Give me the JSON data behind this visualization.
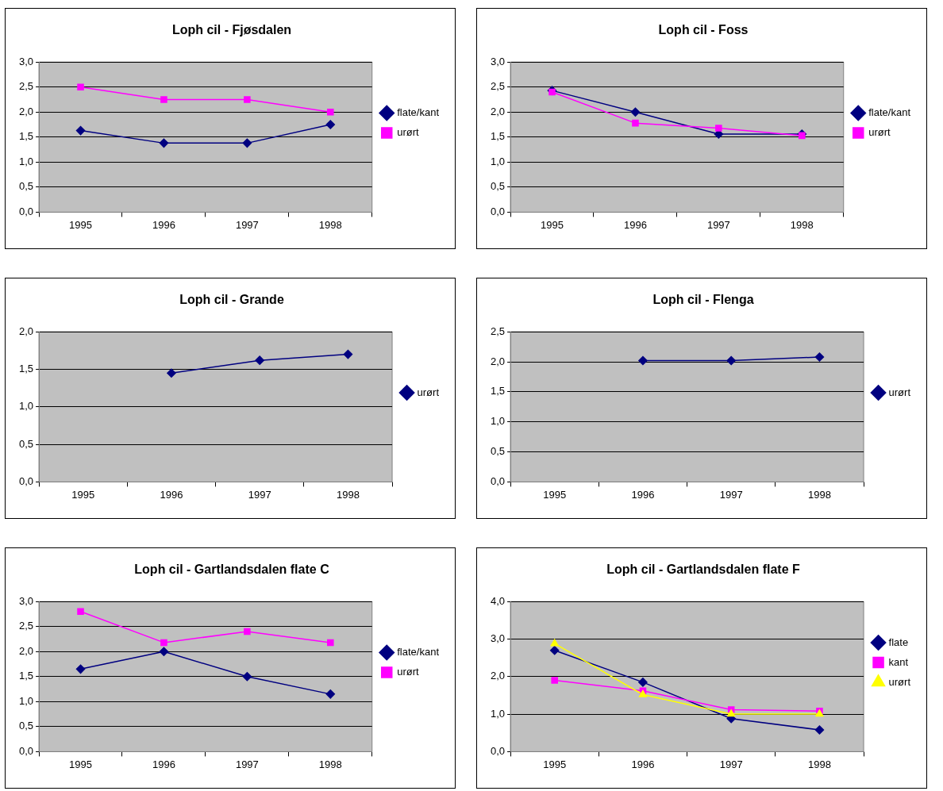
{
  "chart_data": [
    {
      "type": "line",
      "title": "Loph cil - Fjøsdalen",
      "categories": [
        "1995",
        "1996",
        "1997",
        "1998"
      ],
      "ylim": [
        0,
        3
      ],
      "yticks": [
        {
          "value": 0,
          "label": "0,0"
        },
        {
          "value": 0.5,
          "label": "0,5"
        },
        {
          "value": 1,
          "label": "1,0"
        },
        {
          "value": 1.5,
          "label": "1,5"
        },
        {
          "value": 2,
          "label": "2,0"
        },
        {
          "value": 2.5,
          "label": "2,5"
        },
        {
          "value": 3,
          "label": "3,0"
        }
      ],
      "grid": "y",
      "legend": "right",
      "series": [
        {
          "name": "flate/kant",
          "color": "#000080",
          "marker": "diamond",
          "values": [
            1.63,
            1.38,
            1.38,
            1.75
          ]
        },
        {
          "name": "urørt",
          "color": "#ff00ff",
          "marker": "square",
          "values": [
            2.5,
            2.25,
            2.25,
            2.0
          ]
        }
      ]
    },
    {
      "type": "line",
      "title": "Loph cil - Foss",
      "categories": [
        "1995",
        "1996",
        "1997",
        "1998"
      ],
      "ylim": [
        0,
        3
      ],
      "yticks": [
        {
          "value": 0,
          "label": "0,0"
        },
        {
          "value": 0.5,
          "label": "0,5"
        },
        {
          "value": 1,
          "label": "1,0"
        },
        {
          "value": 1.5,
          "label": "1,5"
        },
        {
          "value": 2,
          "label": "2,0"
        },
        {
          "value": 2.5,
          "label": "2,5"
        },
        {
          "value": 3,
          "label": "3,0"
        }
      ],
      "grid": "y",
      "legend": "right",
      "series": [
        {
          "name": "flate/kant",
          "color": "#000080",
          "marker": "diamond",
          "values": [
            2.43,
            2.0,
            1.56,
            1.56
          ]
        },
        {
          "name": "urørt",
          "color": "#ff00ff",
          "marker": "square",
          "values": [
            2.4,
            1.78,
            1.68,
            1.53
          ]
        }
      ]
    },
    {
      "type": "line",
      "title": "Loph cil - Grande",
      "categories": [
        "1995",
        "1996",
        "1997",
        "1998"
      ],
      "ylim": [
        0,
        2
      ],
      "yticks": [
        {
          "value": 0,
          "label": "0,0"
        },
        {
          "value": 0.5,
          "label": "0,5"
        },
        {
          "value": 1,
          "label": "1,0"
        },
        {
          "value": 1.5,
          "label": "1,5"
        },
        {
          "value": 2,
          "label": "2,0"
        }
      ],
      "grid": "y",
      "legend": "right",
      "series": [
        {
          "name": "urørt",
          "color": "#000080",
          "marker": "diamond",
          "values": [
            null,
            1.45,
            1.62,
            1.7
          ]
        }
      ]
    },
    {
      "type": "line",
      "title": "Loph cil - Flenga",
      "categories": [
        "1995",
        "1996",
        "1997",
        "1998"
      ],
      "ylim": [
        0,
        2.5
      ],
      "yticks": [
        {
          "value": 0,
          "label": "0,0"
        },
        {
          "value": 0.5,
          "label": "0,5"
        },
        {
          "value": 1,
          "label": "1,0"
        },
        {
          "value": 1.5,
          "label": "1,5"
        },
        {
          "value": 2,
          "label": "2,0"
        },
        {
          "value": 2.5,
          "label": "2,5"
        }
      ],
      "grid": "y",
      "legend": "right",
      "series": [
        {
          "name": "urørt",
          "color": "#000080",
          "marker": "diamond",
          "values": [
            null,
            2.02,
            2.02,
            2.08
          ]
        }
      ]
    },
    {
      "type": "line",
      "title": "Loph cil - Gartlandsdalen flate C",
      "categories": [
        "1995",
        "1996",
        "1997",
        "1998"
      ],
      "ylim": [
        0,
        3
      ],
      "yticks": [
        {
          "value": 0,
          "label": "0,0"
        },
        {
          "value": 0.5,
          "label": "0,5"
        },
        {
          "value": 1,
          "label": "1,0"
        },
        {
          "value": 1.5,
          "label": "1,5"
        },
        {
          "value": 2,
          "label": "2,0"
        },
        {
          "value": 2.5,
          "label": "2,5"
        },
        {
          "value": 3,
          "label": "3,0"
        }
      ],
      "grid": "y",
      "legend": "right",
      "series": [
        {
          "name": "flate/kant",
          "color": "#000080",
          "marker": "diamond",
          "values": [
            1.65,
            2.0,
            1.5,
            1.15
          ]
        },
        {
          "name": "urørt",
          "color": "#ff00ff",
          "marker": "square",
          "values": [
            2.8,
            2.18,
            2.4,
            2.18
          ]
        }
      ]
    },
    {
      "type": "line",
      "title": "Loph cil - Gartlandsdalen flate F",
      "categories": [
        "1995",
        "1996",
        "1997",
        "1998"
      ],
      "ylim": [
        0,
        4
      ],
      "yticks": [
        {
          "value": 0,
          "label": "0,0"
        },
        {
          "value": 1,
          "label": "1,0"
        },
        {
          "value": 2,
          "label": "2,0"
        },
        {
          "value": 3,
          "label": "3,0"
        },
        {
          "value": 4,
          "label": "4,0"
        }
      ],
      "grid": "y",
      "legend": "right",
      "series": [
        {
          "name": "flate",
          "color": "#000080",
          "marker": "diamond",
          "values": [
            2.7,
            1.85,
            0.88,
            0.58
          ]
        },
        {
          "name": "kant",
          "color": "#ff00ff",
          "marker": "square",
          "values": [
            1.9,
            1.62,
            1.12,
            1.08
          ]
        },
        {
          "name": "urørt",
          "color": "#ffff00",
          "marker": "triangle",
          "values": [
            2.88,
            1.52,
            1.0,
            1.0
          ]
        }
      ]
    }
  ]
}
